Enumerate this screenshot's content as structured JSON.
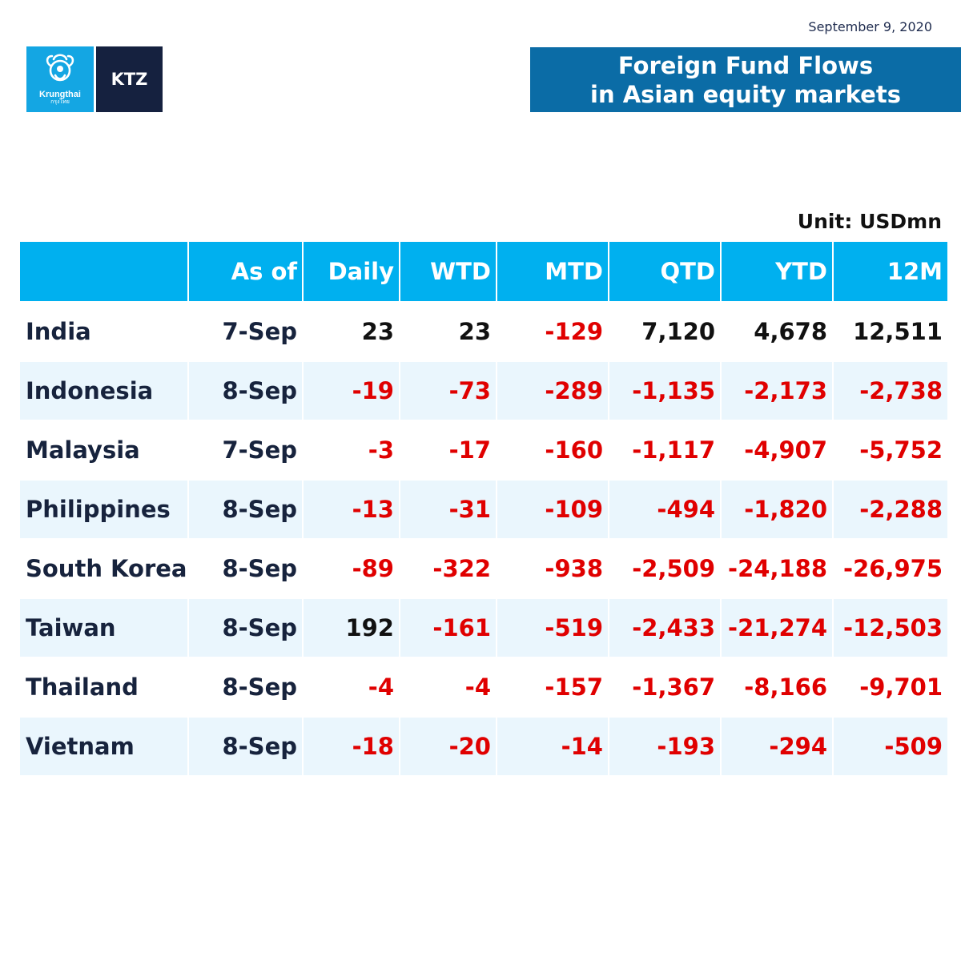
{
  "header": {
    "date": "September 9, 2020",
    "logo_brand": "Krungthai",
    "logo_sub": "กรุงไทย",
    "logo_ktz": "KTZ",
    "title_line1": "Foreign Fund Flows",
    "title_line2": "in Asian equity markets"
  },
  "unit_label": "Unit: USDmn",
  "colors": {
    "header_blue": "#00b0ef",
    "title_blue": "#0b6ca6",
    "navy": "#15213f",
    "negative_red": "#e00000",
    "stripe": "#eaf6fd"
  },
  "table": {
    "columns": [
      "",
      "As of",
      "Daily",
      "WTD",
      "MTD",
      "QTD",
      "YTD",
      "12M"
    ],
    "rows": [
      {
        "country": "India",
        "as_of": "7-Sep",
        "values": [
          "23",
          "23",
          "-129",
          "7,120",
          "4,678",
          "12,511"
        ]
      },
      {
        "country": "Indonesia",
        "as_of": "8-Sep",
        "values": [
          "-19",
          "-73",
          "-289",
          "-1,135",
          "-2,173",
          "-2,738"
        ]
      },
      {
        "country": "Malaysia",
        "as_of": "7-Sep",
        "values": [
          "-3",
          "-17",
          "-160",
          "-1,117",
          "-4,907",
          "-5,752"
        ]
      },
      {
        "country": "Philippines",
        "as_of": "8-Sep",
        "values": [
          "-13",
          "-31",
          "-109",
          "-494",
          "-1,820",
          "-2,288"
        ]
      },
      {
        "country": "South Korea",
        "as_of": "8-Sep",
        "values": [
          "-89",
          "-322",
          "-938",
          "-2,509",
          "-24,188",
          "-26,975"
        ]
      },
      {
        "country": "Taiwan",
        "as_of": "8-Sep",
        "values": [
          "192",
          "-161",
          "-519",
          "-2,433",
          "-21,274",
          "-12,503"
        ]
      },
      {
        "country": "Thailand",
        "as_of": "8-Sep",
        "values": [
          "-4",
          "-4",
          "-157",
          "-1,367",
          "-8,166",
          "-9,701"
        ]
      },
      {
        "country": "Vietnam",
        "as_of": "8-Sep",
        "values": [
          "-18",
          "-20",
          "-14",
          "-193",
          "-294",
          "-509"
        ]
      }
    ]
  }
}
